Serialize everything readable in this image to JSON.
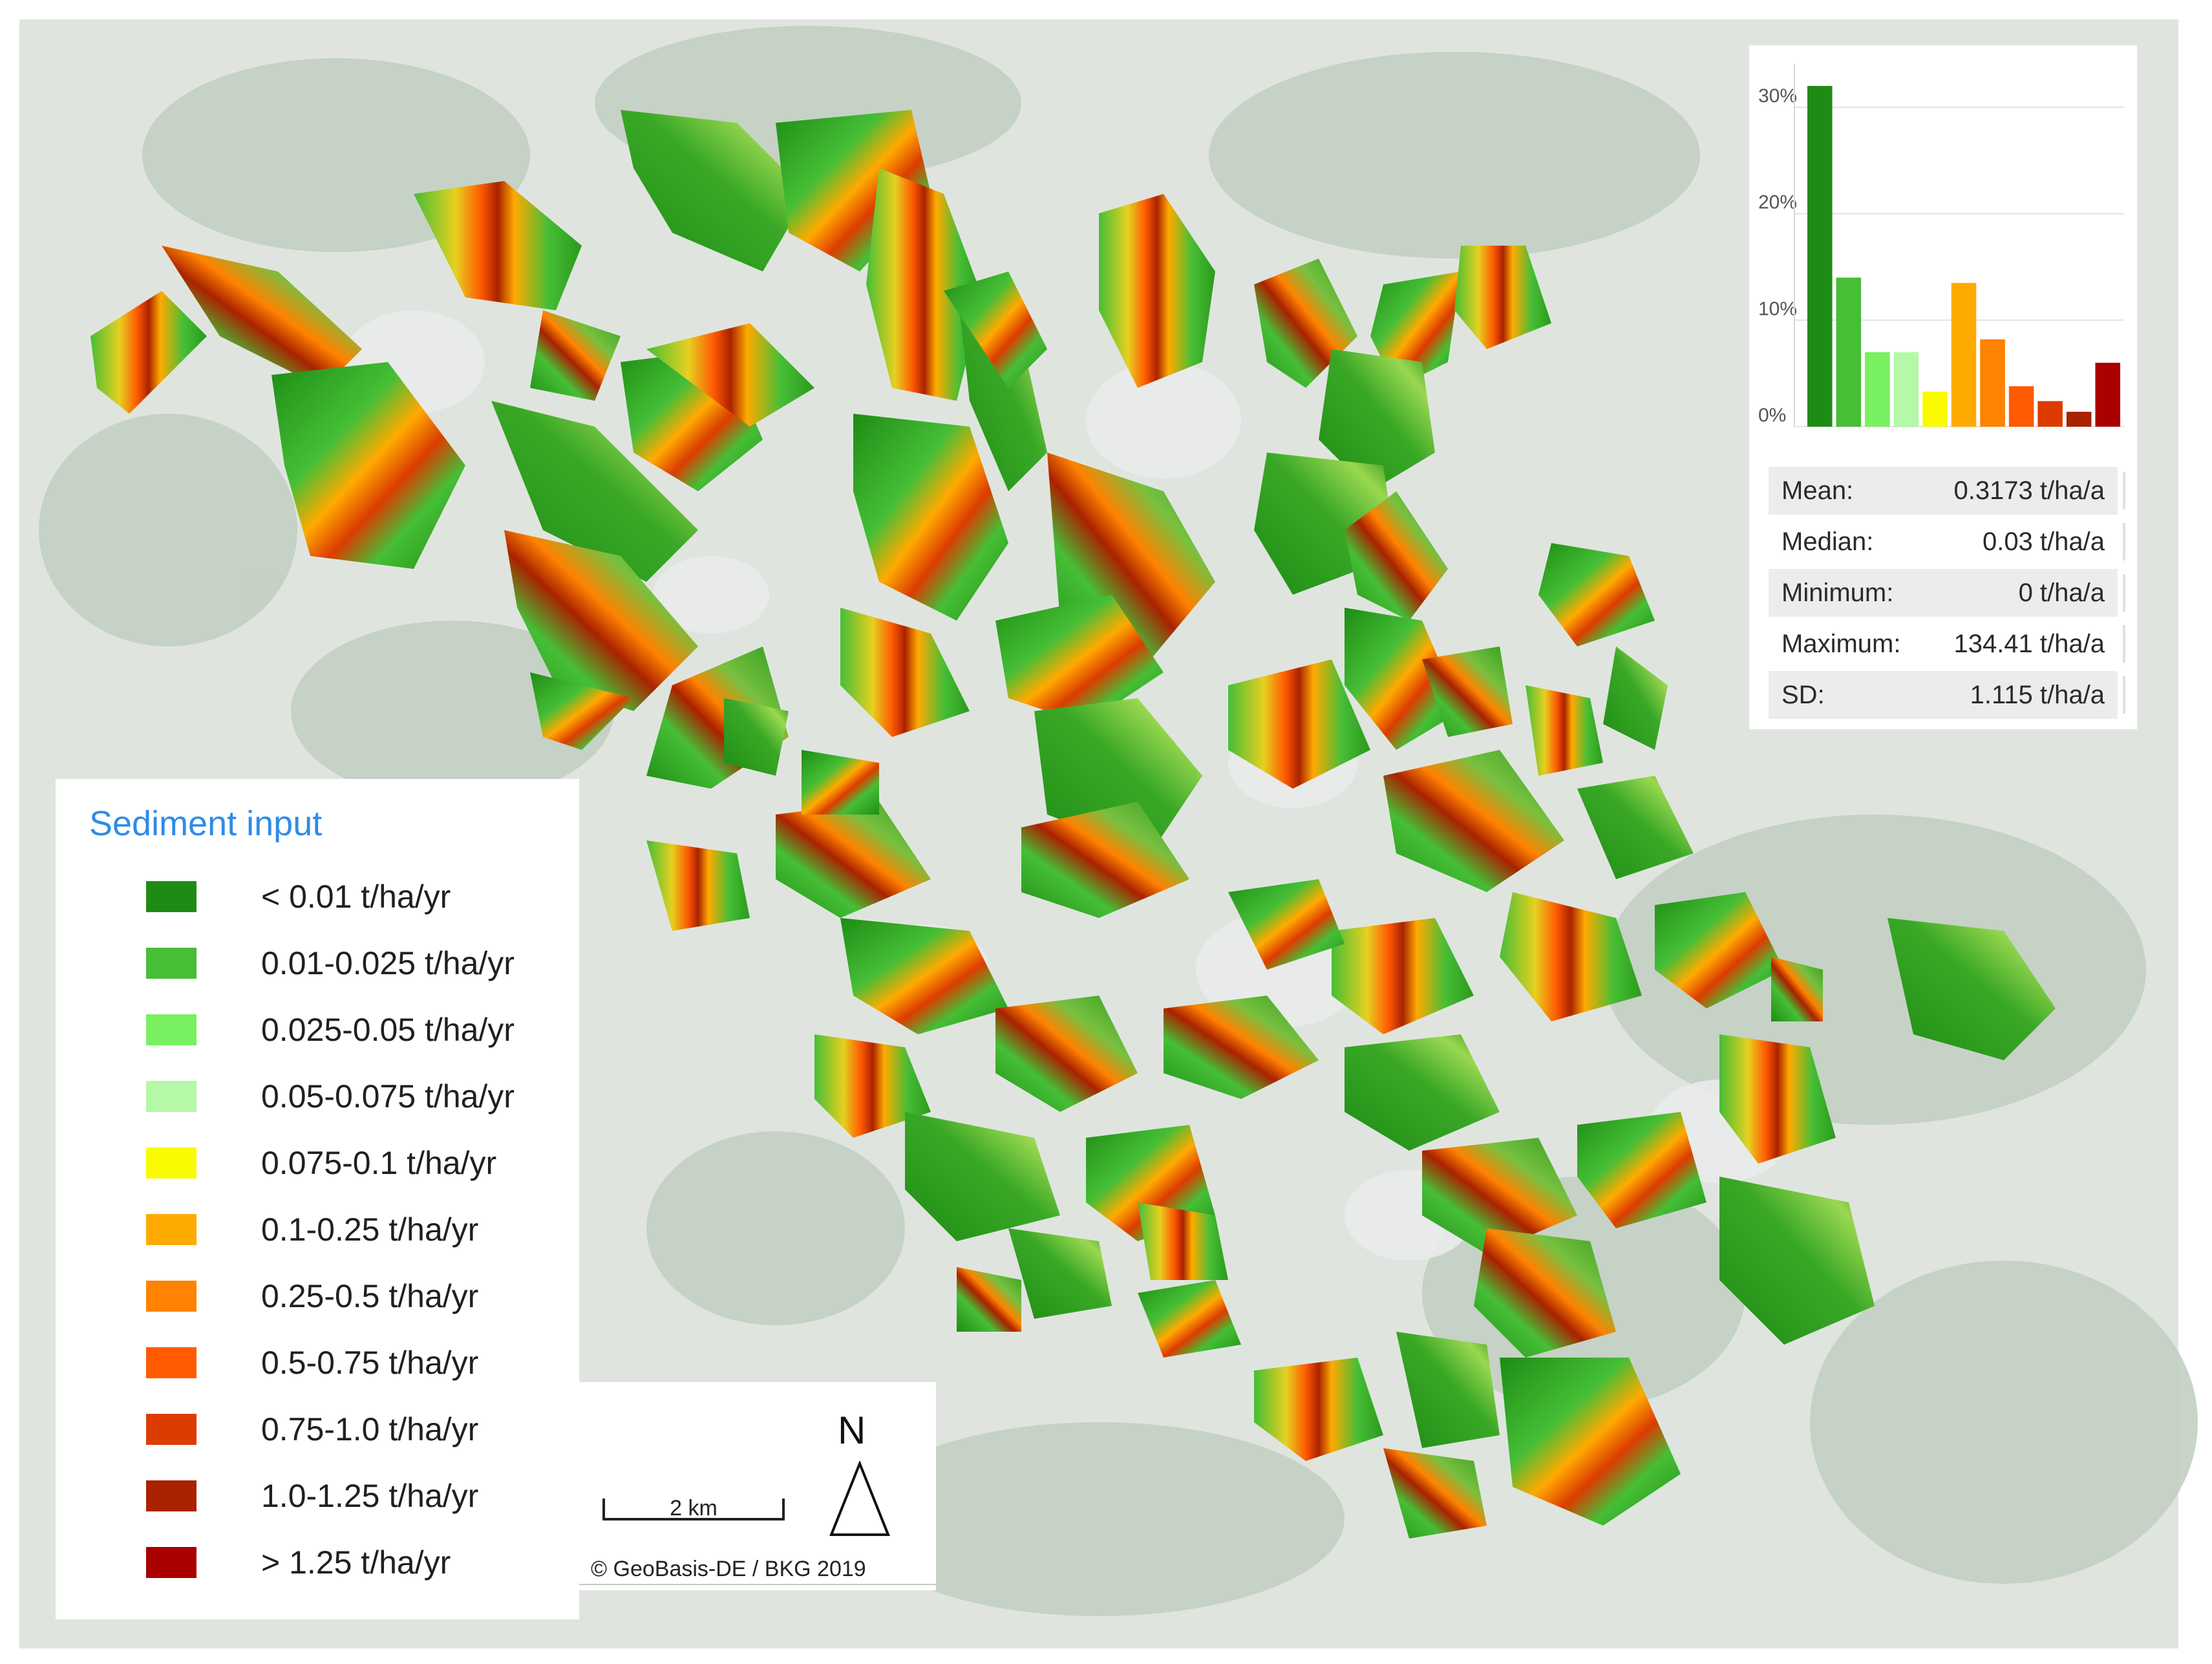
{
  "legend": {
    "title": "Sediment input",
    "classes": [
      {
        "label": "< 0.01 t/ha/yr",
        "color": "#1e8c14"
      },
      {
        "label": "0.01-0.025 t/ha/yr",
        "color": "#46be36"
      },
      {
        "label": "0.025-0.05 t/ha/yr",
        "color": "#78f060"
      },
      {
        "label": "0.05-0.075 t/ha/yr",
        "color": "#b4f8a8"
      },
      {
        "label": "0.075-0.1 t/ha/yr",
        "color": "#fafa00"
      },
      {
        "label": "0.1-0.25 t/ha/yr",
        "color": "#ffaa00"
      },
      {
        "label": "0.25-0.5 t/ha/yr",
        "color": "#ff8200"
      },
      {
        "label": "0.5-0.75 t/ha/yr",
        "color": "#ff5a00"
      },
      {
        "label": "0.75-1.0 t/ha/yr",
        "color": "#dc3c00"
      },
      {
        "label": "1.0-1.25 t/ha/yr",
        "color": "#aa2200"
      },
      {
        "label": "> 1.25 t/ha/yr",
        "color": "#aa0000"
      }
    ]
  },
  "scale_bar": {
    "label": "2 km"
  },
  "north_arrow": {
    "label": "N"
  },
  "attribution": "© GeoBasis-DE / BKG 2019",
  "histogram": {
    "y_ticks": [
      "30%",
      "20%",
      "10%",
      "0%"
    ],
    "y_tick_values": [
      30,
      20,
      10,
      0
    ],
    "ymax": 34,
    "values": [
      32,
      14,
      7,
      7,
      3.3,
      13.5,
      8.2,
      3.8,
      2.4,
      1.4,
      6
    ]
  },
  "statistics": [
    {
      "key": "Mean:",
      "value": "0.3173 t/ha/a"
    },
    {
      "key": "Median:",
      "value": "0.03 t/ha/a"
    },
    {
      "key": "Minimum:",
      "value": "0 t/ha/a"
    },
    {
      "key": "Maximum:",
      "value": "134.41 t/ha/a"
    },
    {
      "key": "SD:",
      "value": "1.115 t/ha/a"
    }
  ],
  "map_colors": {
    "background": "#dfe5de",
    "forest": "#c3cfc2",
    "settlement": "#e9ebea"
  }
}
